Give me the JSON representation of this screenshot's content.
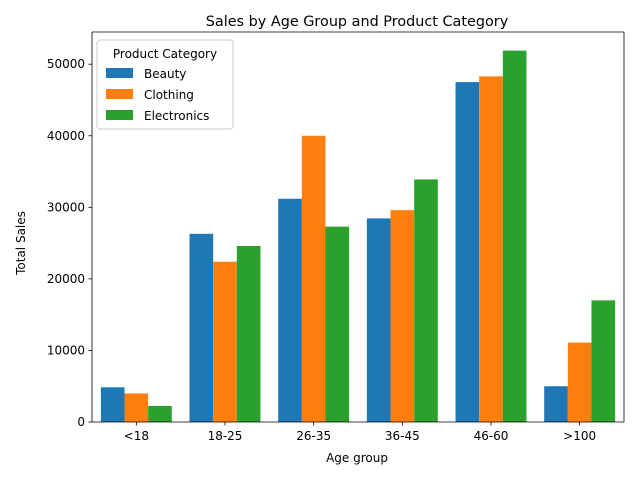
{
  "chart_data": {
    "type": "bar",
    "title": "Sales by Age Group and Product Category",
    "xlabel": "Age group",
    "ylabel": "Total Sales",
    "categories": [
      "<18",
      "18-25",
      "26-35",
      "36-45",
      "46-60",
      ">100"
    ],
    "series": [
      {
        "name": "Beauty",
        "color": "#1f77b4",
        "values": [
          4850,
          26300,
          31200,
          28450,
          47500,
          5000
        ]
      },
      {
        "name": "Clothing",
        "color": "#ff7f0e",
        "values": [
          4000,
          22400,
          40000,
          29600,
          48300,
          11100
        ]
      },
      {
        "name": "Electronics",
        "color": "#2ca02c",
        "values": [
          2250,
          24600,
          27300,
          33900,
          51900,
          17000
        ]
      }
    ],
    "ylim": [
      0,
      54500
    ],
    "yticks": [
      0,
      10000,
      20000,
      30000,
      40000,
      50000
    ],
    "grid": false,
    "legend": {
      "title": "Product Category",
      "placement": "top-left"
    }
  }
}
